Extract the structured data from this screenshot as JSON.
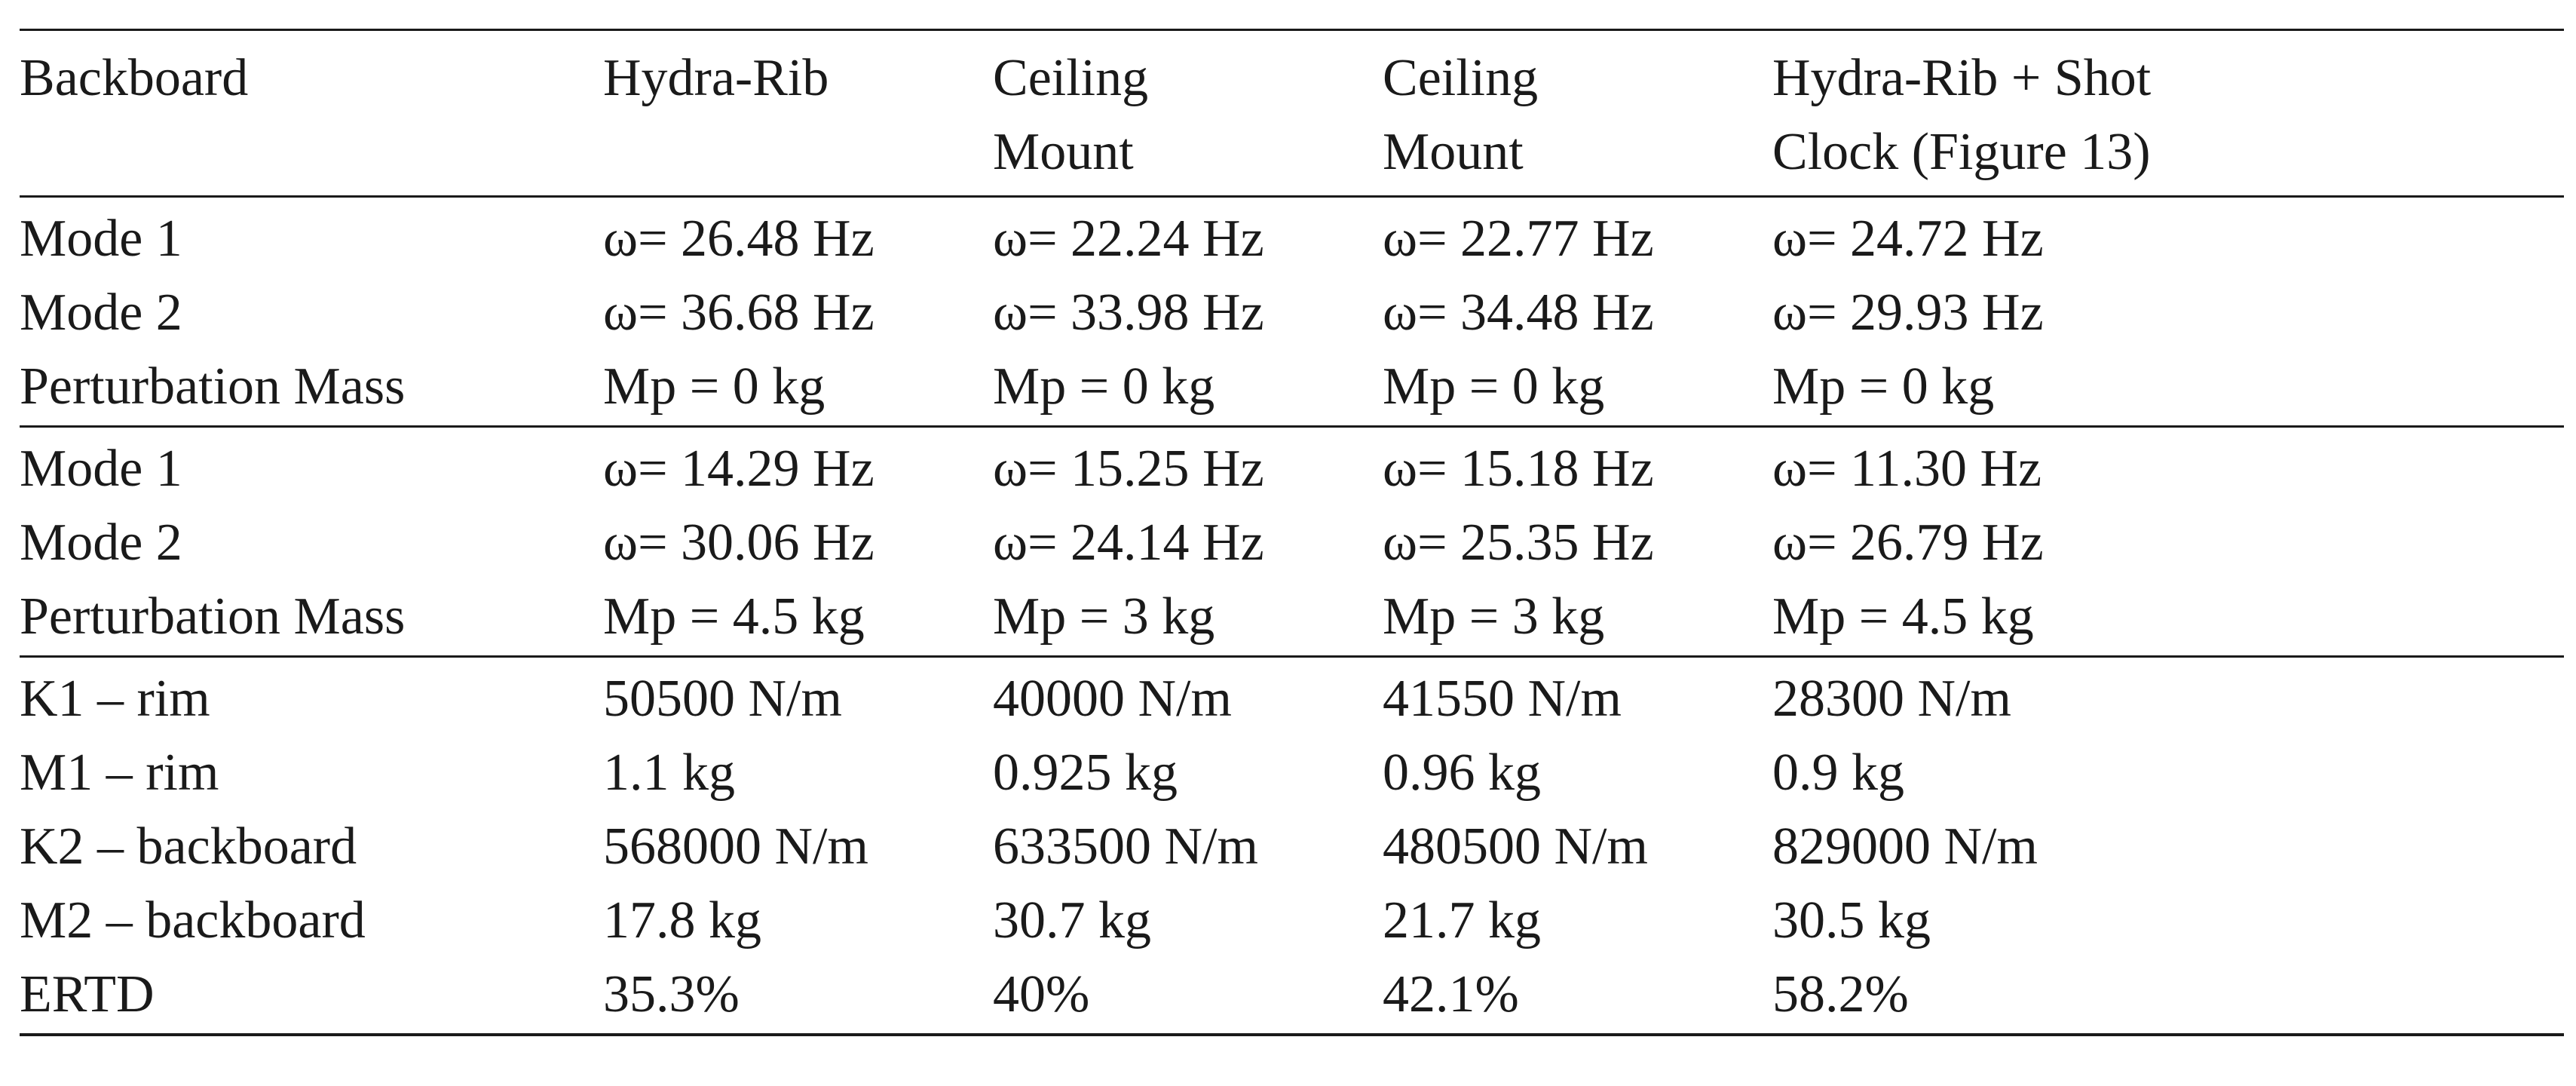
{
  "table": {
    "headers": [
      [
        "Backboard"
      ],
      [
        "Hydra-Rib"
      ],
      [
        "Ceiling",
        "Mount"
      ],
      [
        "Ceiling",
        "Mount"
      ],
      [
        "Hydra-Rib + Shot",
        "Clock (Figure 13)"
      ]
    ],
    "groups": [
      [
        [
          "Mode 1",
          "ω= 26.48 Hz",
          "ω= 22.24 Hz",
          "ω= 22.77 Hz",
          "ω= 24.72 Hz"
        ],
        [
          "Mode 2",
          "ω= 36.68 Hz",
          "ω= 33.98 Hz",
          "ω= 34.48 Hz",
          "ω= 29.93 Hz"
        ],
        [
          "Perturbation Mass",
          "Mp = 0 kg",
          "Mp = 0 kg",
          "Mp = 0 kg",
          "Mp = 0 kg"
        ]
      ],
      [
        [
          "Mode 1",
          "ω= 14.29 Hz",
          "ω= 15.25 Hz",
          "ω= 15.18 Hz",
          "ω= 11.30 Hz"
        ],
        [
          "Mode 2",
          "ω= 30.06 Hz",
          "ω= 24.14 Hz",
          "ω= 25.35 Hz",
          "ω= 26.79 Hz"
        ],
        [
          "Perturbation Mass",
          "Mp = 4.5 kg",
          "Mp = 3 kg",
          "Mp = 3 kg",
          "Mp = 4.5 kg"
        ]
      ],
      [
        [
          "K1 – rim",
          "50500 N/m",
          "40000 N/m",
          "41550 N/m",
          "28300 N/m"
        ],
        [
          "M1 – rim",
          "1.1 kg",
          "0.925 kg",
          "0.96 kg",
          "0.9 kg"
        ],
        [
          "K2 – backboard",
          "568000 N/m",
          "633500 N/m",
          "480500 N/m",
          "829000 N/m"
        ],
        [
          "M2 – backboard",
          "17.8 kg",
          "30.7 kg",
          "21.7 kg",
          "30.5 kg"
        ],
        [
          "ERTD",
          "35.3%",
          "40%",
          "42.1%",
          "58.2%"
        ]
      ]
    ]
  }
}
